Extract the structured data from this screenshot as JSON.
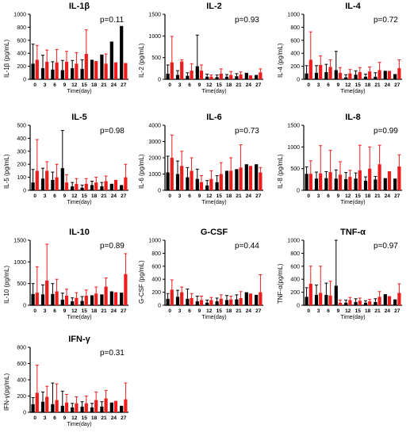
{
  "colors": {
    "group_a": "#000000",
    "group_b": "#ee1c1c",
    "axis": "#000000"
  },
  "shared": {
    "xlabel": "Time(day)",
    "days": [
      "0",
      "3",
      "6",
      "9",
      "12",
      "15",
      "18",
      "21",
      "24",
      "27"
    ]
  },
  "chart_data": [
    {
      "type": "bar",
      "title": "IL-1β",
      "ylabel": "IL-1β (pg/mL)",
      "pvalue": "p=0.11",
      "ylim": [
        0,
        1000
      ],
      "yticks": [
        "0",
        "200",
        "400",
        "600",
        "800",
        "1000"
      ],
      "categories": [
        "0",
        "3",
        "6",
        "9",
        "12",
        "15",
        "18",
        "21",
        "24",
        "27"
      ],
      "series": [
        {
          "values": [
            240,
            170,
            150,
            140,
            170,
            160,
            300,
            380,
            580,
            820
          ],
          "errors": [
            300,
            200,
            120,
            150,
            120,
            140,
            0,
            0,
            0,
            0
          ]
        },
        {
          "values": [
            300,
            270,
            260,
            270,
            240,
            390,
            280,
            240,
            260,
            250
          ],
          "errors": [
            220,
            180,
            200,
            160,
            170,
            370,
            0,
            150,
            0,
            0
          ]
        }
      ]
    },
    {
      "type": "bar",
      "title": "IL-2",
      "ylabel": "IL-2 (pg/mL)",
      "pvalue": "p=0.93",
      "ylim": [
        0,
        1500
      ],
      "yticks": [
        "0",
        "500",
        "1000",
        "1500"
      ],
      "categories": [
        "0",
        "3",
        "6",
        "9",
        "12",
        "15",
        "18",
        "21",
        "24",
        "27"
      ],
      "series": [
        {
          "values": [
            130,
            100,
            80,
            300,
            60,
            50,
            60,
            70,
            150,
            100
          ],
          "errors": [
            200,
            100,
            70,
            720,
            60,
            50,
            50,
            60,
            0,
            0
          ]
        },
        {
          "values": [
            390,
            410,
            200,
            200,
            60,
            130,
            100,
            110,
            90,
            160
          ],
          "errors": [
            600,
            40,
            160,
            130,
            40,
            110,
            80,
            60,
            0,
            80
          ]
        }
      ]
    },
    {
      "type": "bar",
      "title": "IL-4",
      "ylabel": "IL-4 (pg/mL)",
      "pvalue": "p=0.72",
      "ylim": [
        0,
        1000
      ],
      "yticks": [
        "0",
        "200",
        "400",
        "600",
        "800",
        "1000"
      ],
      "categories": [
        "0",
        "3",
        "6",
        "9",
        "12",
        "15",
        "18",
        "21",
        "24",
        "27"
      ],
      "series": [
        {
          "values": [
            90,
            100,
            110,
            140,
            30,
            70,
            40,
            40,
            130,
            80
          ],
          "errors": [
            120,
            110,
            120,
            290,
            40,
            60,
            40,
            60,
            0,
            0
          ]
        },
        {
          "values": [
            300,
            220,
            190,
            100,
            90,
            110,
            120,
            140,
            130,
            170
          ],
          "errors": [
            430,
            140,
            110,
            80,
            60,
            70,
            70,
            120,
            0,
            130
          ]
        }
      ]
    },
    {
      "type": "bar",
      "title": "IL-5",
      "ylabel": "IL-5 (pg/mL)",
      "pvalue": "p=0.98",
      "ylim": [
        0,
        500
      ],
      "yticks": [
        "0",
        "100",
        "200",
        "300",
        "400",
        "500"
      ],
      "categories": [
        "0",
        "3",
        "6",
        "9",
        "12",
        "15",
        "18",
        "21",
        "24",
        "27"
      ],
      "series": [
        {
          "values": [
            60,
            90,
            80,
            170,
            30,
            20,
            40,
            30,
            50,
            40
          ],
          "errors": [
            100,
            80,
            60,
            290,
            30,
            20,
            30,
            30,
            0,
            0
          ]
        },
        {
          "values": [
            150,
            150,
            100,
            60,
            50,
            50,
            60,
            70,
            80,
            100
          ],
          "errors": [
            240,
            70,
            100,
            60,
            40,
            40,
            40,
            40,
            0,
            100
          ]
        }
      ]
    },
    {
      "type": "bar",
      "title": "IL-6",
      "ylabel": "IL-6 (pg/mL)",
      "pvalue": "p=0.73",
      "ylim": [
        0,
        4000
      ],
      "yticks": [
        "0",
        "1000",
        "2000",
        "3000",
        "4000"
      ],
      "categories": [
        "0",
        "3",
        "6",
        "9",
        "12",
        "15",
        "18",
        "21",
        "24",
        "27"
      ],
      "series": [
        {
          "values": [
            1100,
            1000,
            800,
            700,
            300,
            500,
            1200,
            1300,
            1600,
            1600
          ],
          "errors": [
            1000,
            800,
            600,
            600,
            300,
            400,
            0,
            0,
            0,
            0
          ]
        },
        {
          "values": [
            2000,
            1500,
            1200,
            500,
            700,
            1000,
            1200,
            1400,
            1500,
            1100
          ],
          "errors": [
            1400,
            900,
            800,
            400,
            500,
            700,
            800,
            1400,
            0,
            300
          ]
        }
      ]
    },
    {
      "type": "bar",
      "title": "IL-8",
      "ylabel": "IL-8 (pg/mL)",
      "pvalue": "p=0.99",
      "ylim": [
        0,
        1500
      ],
      "yticks": [
        "0",
        "500",
        "1000",
        "1500"
      ],
      "categories": [
        "0",
        "3",
        "6",
        "9",
        "12",
        "15",
        "18",
        "21",
        "24",
        "27"
      ],
      "series": [
        {
          "values": [
            380,
            270,
            280,
            270,
            260,
            270,
            220,
            250,
            280,
            270
          ],
          "errors": [
            160,
            150,
            150,
            200,
            150,
            130,
            90,
            70,
            0,
            0
          ]
        },
        {
          "values": [
            380,
            390,
            420,
            360,
            310,
            460,
            500,
            600,
            440,
            550
          ],
          "errors": [
            300,
            640,
            500,
            300,
            150,
            580,
            500,
            440,
            0,
            270
          ]
        }
      ]
    },
    {
      "type": "bar",
      "title": "IL-10",
      "ylabel": "IL-10 (pg/mL)",
      "pvalue": "p=0.89",
      "ylim": [
        0,
        1500
      ],
      "yticks": [
        "0",
        "500",
        "1000",
        "1500"
      ],
      "categories": [
        "0",
        "3",
        "6",
        "9",
        "12",
        "15",
        "18",
        "21",
        "24",
        "27"
      ],
      "series": [
        {
          "values": [
            260,
            250,
            260,
            130,
            90,
            100,
            230,
            250,
            320,
            290
          ],
          "errors": [
            240,
            220,
            240,
            150,
            80,
            100,
            0,
            0,
            0,
            0
          ]
        },
        {
          "values": [
            290,
            570,
            320,
            220,
            170,
            220,
            270,
            430,
            300,
            720
          ],
          "errors": [
            600,
            840,
            280,
            150,
            120,
            130,
            150,
            200,
            0,
            470
          ]
        }
      ]
    },
    {
      "type": "bar",
      "title": "G-CSF",
      "ylabel": "G-CSF (pg/mL)",
      "pvalue": "p=0.44",
      "ylim": [
        0,
        1000
      ],
      "yticks": [
        "0",
        "200",
        "400",
        "600",
        "800",
        "1000"
      ],
      "categories": [
        "0",
        "3",
        "6",
        "9",
        "12",
        "15",
        "18",
        "21",
        "24",
        "27"
      ],
      "series": [
        {
          "values": [
            100,
            130,
            100,
            60,
            40,
            60,
            80,
            90,
            200,
            160
          ],
          "errors": [
            80,
            100,
            150,
            80,
            40,
            50,
            70,
            70,
            0,
            0
          ]
        },
        {
          "values": [
            240,
            200,
            110,
            80,
            80,
            100,
            90,
            110,
            180,
            200
          ],
          "errors": [
            150,
            80,
            70,
            60,
            40,
            60,
            50,
            100,
            0,
            270
          ]
        }
      ]
    },
    {
      "type": "bar",
      "title": "TNF-α",
      "ylabel": "TNF-α(pg/mL)",
      "pvalue": "p=0.97",
      "ylim": [
        0,
        1000
      ],
      "yticks": [
        "0",
        "200",
        "400",
        "600",
        "800",
        "1000"
      ],
      "categories": [
        "0",
        "3",
        "6",
        "9",
        "12",
        "15",
        "18",
        "21",
        "24",
        "27"
      ],
      "series": [
        {
          "values": [
            130,
            160,
            160,
            300,
            40,
            50,
            40,
            50,
            170,
            90
          ],
          "errors": [
            140,
            150,
            180,
            710,
            40,
            50,
            30,
            50,
            0,
            0
          ]
        },
        {
          "values": [
            330,
            190,
            150,
            40,
            80,
            70,
            60,
            130,
            140,
            190
          ],
          "errors": [
            270,
            410,
            220,
            40,
            40,
            40,
            30,
            80,
            0,
            140
          ]
        }
      ]
    },
    {
      "type": "bar",
      "title": "IFN-γ",
      "ylabel": "IFN-γ(pg/mL)",
      "pvalue": "p=0.31",
      "ylim": [
        0,
        800
      ],
      "yticks": [
        "0",
        "200",
        "400",
        "600",
        "800"
      ],
      "categories": [
        "0",
        "3",
        "6",
        "9",
        "12",
        "15",
        "18",
        "21",
        "24",
        "27"
      ],
      "series": [
        {
          "values": [
            100,
            130,
            100,
            80,
            60,
            70,
            60,
            70,
            120,
            80
          ],
          "errors": [
            80,
            120,
            260,
            180,
            50,
            60,
            50,
            60,
            0,
            0
          ]
        },
        {
          "values": [
            240,
            190,
            150,
            120,
            110,
            110,
            150,
            170,
            140,
            160
          ],
          "errors": [
            340,
            130,
            200,
            100,
            80,
            90,
            100,
            100,
            0,
            200
          ]
        }
      ]
    }
  ]
}
